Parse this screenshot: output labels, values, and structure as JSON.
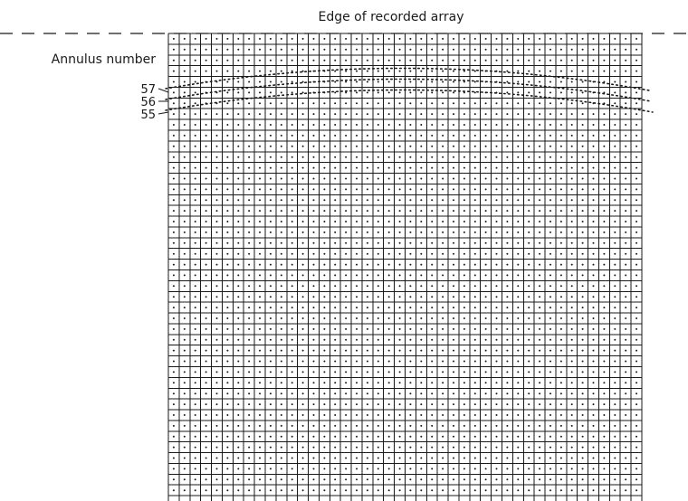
{
  "labels": {
    "edge": "Edge of recorded array",
    "annulus": "Annulus number"
  },
  "annuli": [
    {
      "number": "57"
    },
    {
      "number": "56"
    },
    {
      "number": "55"
    }
  ],
  "colors": {
    "ink": "#1a1a1a",
    "background": "#ffffff"
  }
}
